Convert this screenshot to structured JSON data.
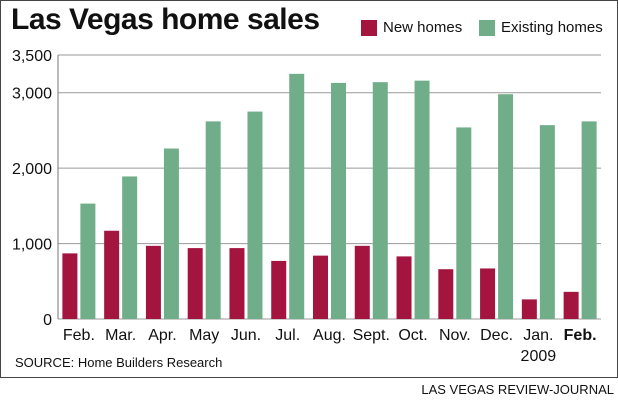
{
  "chart_data": {
    "type": "bar",
    "title": "Las Vegas home sales",
    "categories": [
      "Feb.",
      "Mar.",
      "Apr.",
      "May",
      "Jun.",
      "Jul.",
      "Aug.",
      "Sept.",
      "Oct.",
      "Nov.",
      "Dec.",
      "Jan.",
      "Feb."
    ],
    "year_label": "2009",
    "series": [
      {
        "name": "New homes",
        "color": "#a3153f",
        "values": [
          870,
          1170,
          970,
          940,
          940,
          770,
          840,
          970,
          830,
          660,
          670,
          260,
          360
        ]
      },
      {
        "name": "Existing homes",
        "color": "#6fae88",
        "values": [
          1530,
          1890,
          2260,
          2620,
          2750,
          3250,
          3130,
          3140,
          3160,
          2540,
          2980,
          2570,
          2620
        ]
      }
    ],
    "ylim": [
      0,
      3500
    ],
    "yticks": [
      0,
      1000,
      2000,
      3000,
      3500
    ],
    "ytick_labels": [
      "0",
      "1,000",
      "2,000",
      "3,000",
      "3,500"
    ],
    "grid": true,
    "legend_position": "top-right",
    "xlabel": "",
    "ylabel": "",
    "source": "SOURCE: Home Builders Research"
  },
  "credit": "LAS VEGAS REVIEW-JOURNAL"
}
